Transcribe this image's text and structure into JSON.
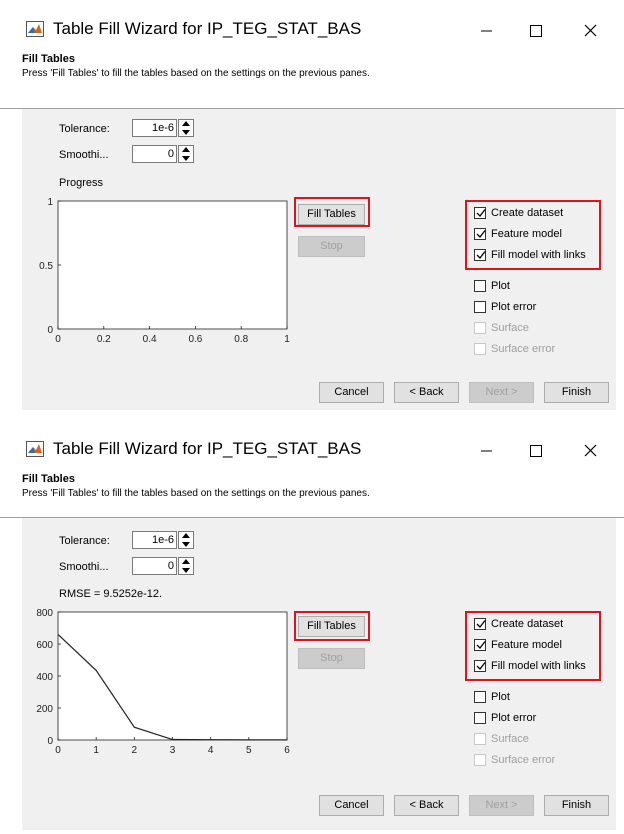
{
  "windows": [
    {
      "title": "Table Fill Wizard for IP_TEG_STAT_BAS",
      "header": {
        "title": "Fill Tables",
        "description": "Press 'Fill Tables' to fill the tables based on the settings on the previous panes."
      },
      "tolerance": {
        "label": "Tolerance:",
        "value": "1e-6"
      },
      "smoothing": {
        "label": "Smoothi...",
        "value": "0"
      },
      "status_label": "Progress",
      "chart_data": {
        "type": "line",
        "x": [],
        "y": [],
        "xlim": [
          0,
          1
        ],
        "ylim": [
          0,
          1
        ],
        "xticks": [
          "0",
          "0.2",
          "0.4",
          "0.6",
          "0.8",
          "1"
        ],
        "yticks": [
          "0",
          "0.5",
          "1"
        ]
      },
      "buttons": {
        "fill": "Fill Tables",
        "stop": "Stop"
      },
      "checkboxes": [
        {
          "label": "Create dataset",
          "checked": true,
          "enabled": true
        },
        {
          "label": "Feature model",
          "checked": true,
          "enabled": true
        },
        {
          "label": "Fill model with links",
          "checked": true,
          "enabled": true
        },
        {
          "label": "Plot",
          "checked": false,
          "enabled": true
        },
        {
          "label": "Plot error",
          "checked": false,
          "enabled": true
        },
        {
          "label": "Surface",
          "checked": false,
          "enabled": false
        },
        {
          "label": "Surface error",
          "checked": false,
          "enabled": false
        }
      ],
      "nav": {
        "cancel": "Cancel",
        "back": "< Back",
        "next": "Next >",
        "finish": "Finish"
      }
    },
    {
      "title": "Table Fill Wizard for IP_TEG_STAT_BAS",
      "header": {
        "title": "Fill Tables",
        "description": "Press 'Fill Tables' to fill the tables based on the settings on the previous panes."
      },
      "tolerance": {
        "label": "Tolerance:",
        "value": "1e-6"
      },
      "smoothing": {
        "label": "Smoothi...",
        "value": "0"
      },
      "status_label": "RMSE = 9.5252e-12.",
      "chart_data": {
        "type": "line",
        "x": [
          0,
          1,
          2,
          3,
          4,
          5,
          6
        ],
        "y": [
          660,
          435,
          80,
          3,
          2,
          1,
          1
        ],
        "xlim": [
          0,
          6
        ],
        "ylim": [
          0,
          800
        ],
        "xticks": [
          "0",
          "1",
          "2",
          "3",
          "4",
          "5",
          "6"
        ],
        "yticks": [
          "0",
          "200",
          "400",
          "600",
          "800"
        ]
      },
      "buttons": {
        "fill": "Fill Tables",
        "stop": "Stop"
      },
      "checkboxes": [
        {
          "label": "Create dataset",
          "checked": true,
          "enabled": true
        },
        {
          "label": "Feature model",
          "checked": true,
          "enabled": true
        },
        {
          "label": "Fill model with links",
          "checked": true,
          "enabled": true
        },
        {
          "label": "Plot",
          "checked": false,
          "enabled": true
        },
        {
          "label": "Plot error",
          "checked": false,
          "enabled": true
        },
        {
          "label": "Surface",
          "checked": false,
          "enabled": false
        },
        {
          "label": "Surface error",
          "checked": false,
          "enabled": false
        }
      ],
      "nav": {
        "cancel": "Cancel",
        "back": "< Back",
        "next": "Next >",
        "finish": "Finish"
      }
    }
  ],
  "highlight_color": "#e0121a",
  "icons": {
    "app": "matlab-icon",
    "minimize": "minimize-icon",
    "maximize": "maximize-icon",
    "close": "close-icon"
  }
}
